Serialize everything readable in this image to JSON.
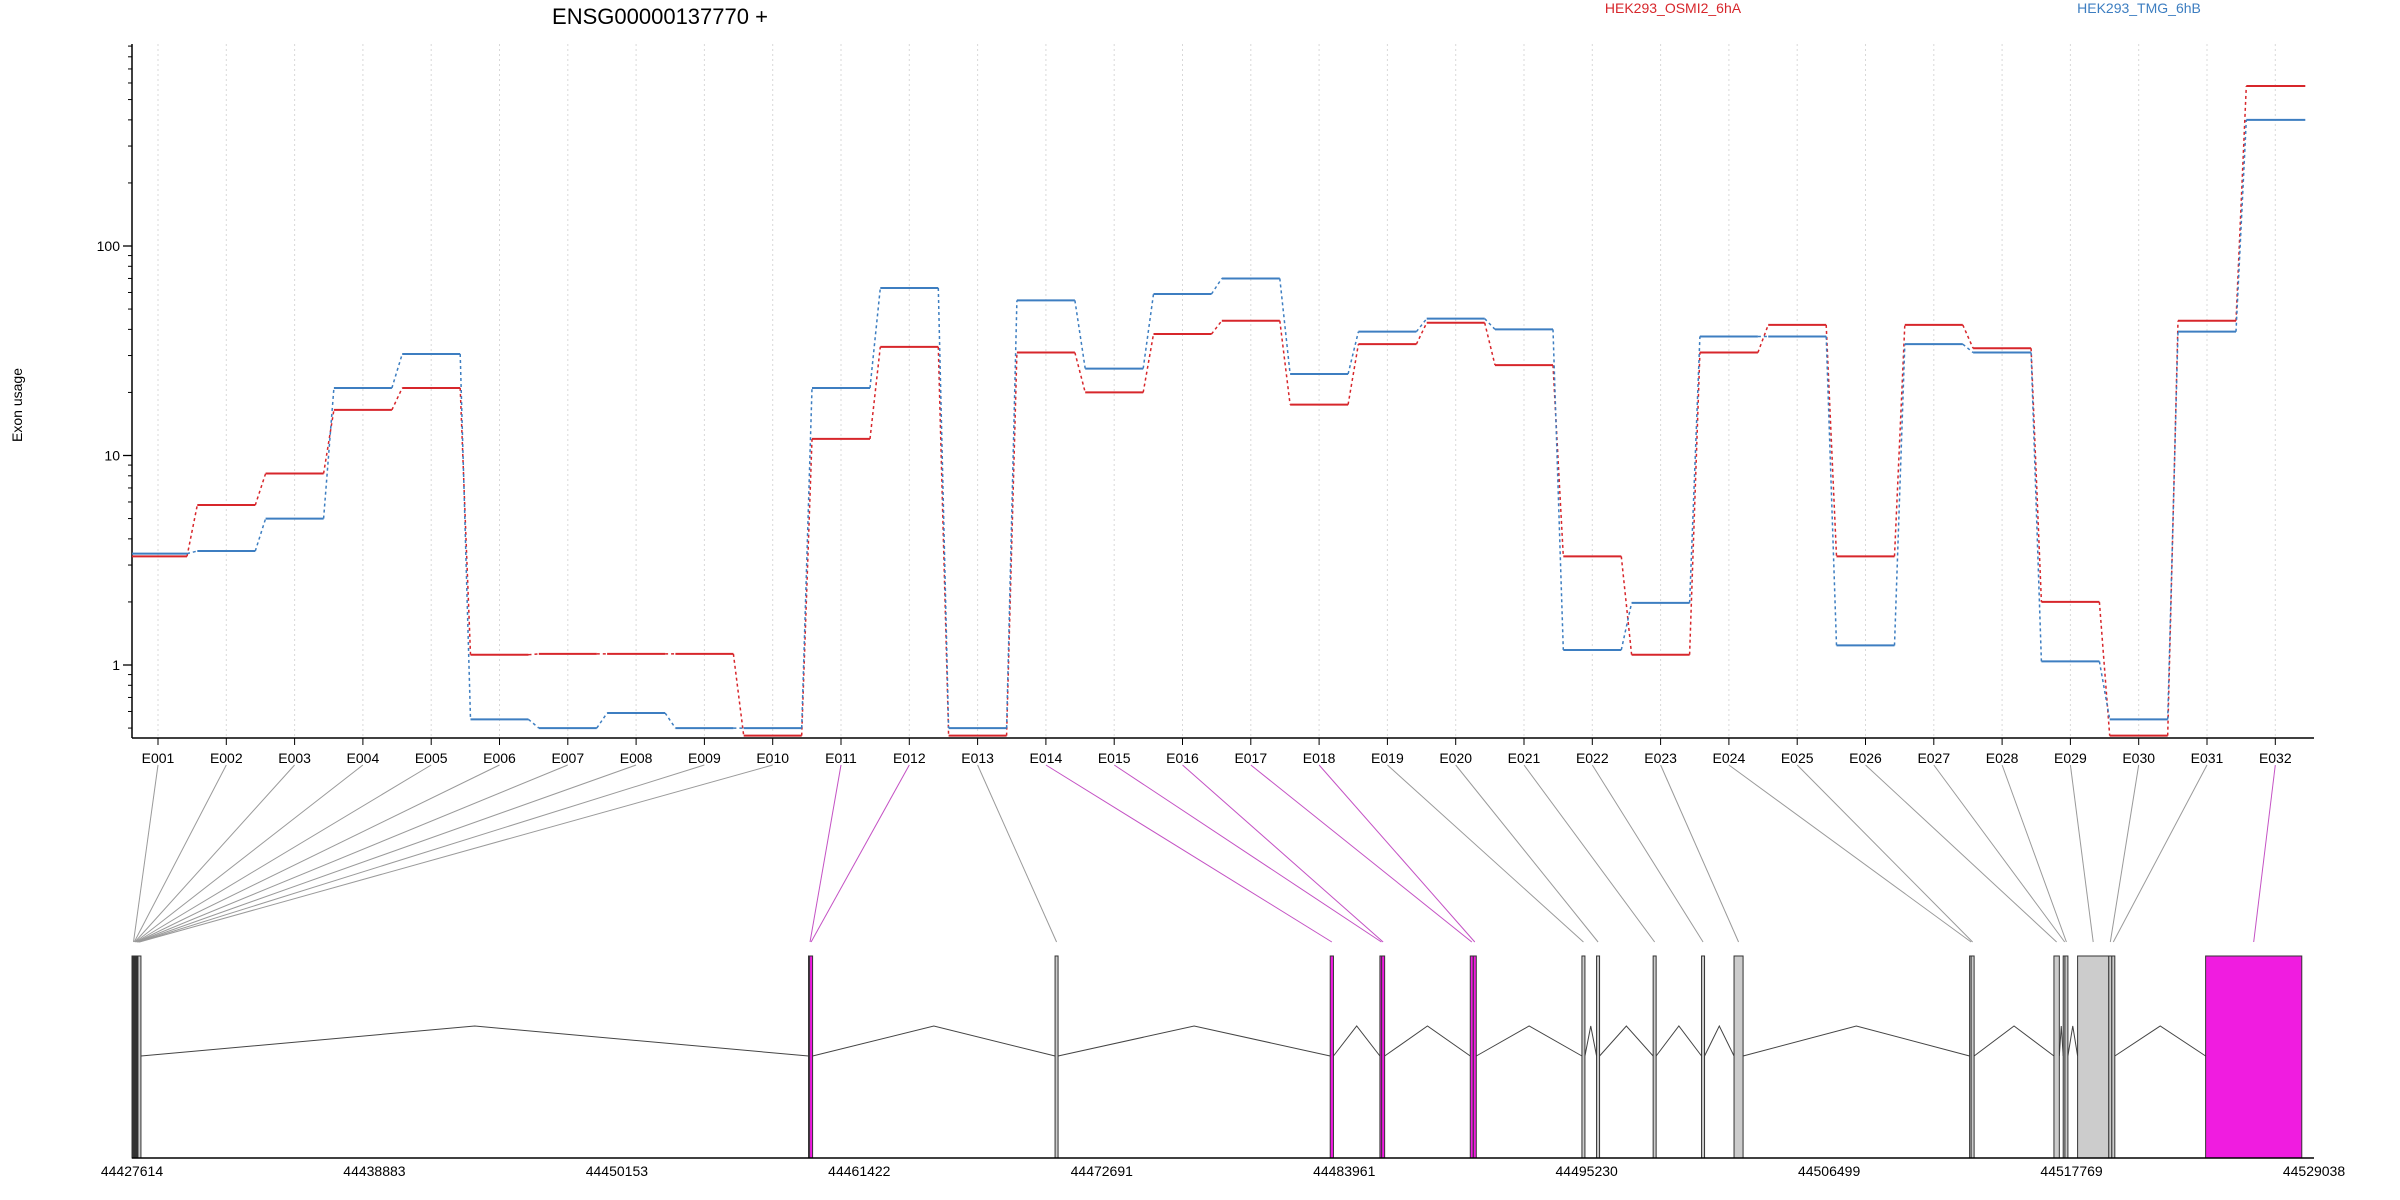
{
  "chart_data": {
    "type": "line",
    "title": "ENSG00000137770 +",
    "xlabel": "",
    "ylabel": "Exon usage",
    "y_scale": "log",
    "ylim": [
      0.4,
      850
    ],
    "y_ticks": [
      1,
      10,
      100
    ],
    "y_tick_labels": [
      "1",
      "10",
      "100"
    ],
    "grid": "vertical dotted lines at each exon",
    "legend_position": "top",
    "categories": [
      "E001",
      "E002",
      "E003",
      "E004",
      "E005",
      "E006",
      "E007",
      "E008",
      "E009",
      "E010",
      "E011",
      "E012",
      "E013",
      "E014",
      "E015",
      "E016",
      "E017",
      "E018",
      "E019",
      "E020",
      "E021",
      "E022",
      "E023",
      "E024",
      "E025",
      "E026",
      "E027",
      "E028",
      "E029",
      "E030",
      "E031",
      "E032"
    ],
    "series": [
      {
        "name": "HEK293_OSMI2_6hA",
        "color": "#d7262b",
        "values": [
          3.3,
          5.8,
          8.2,
          16.5,
          21,
          1.12,
          1.13,
          1.13,
          1.13,
          0.46,
          12,
          33,
          0.46,
          31,
          20,
          38,
          44,
          17.5,
          34,
          43,
          27,
          3.3,
          1.12,
          31,
          42,
          3.3,
          42,
          32.5,
          2,
          0.46,
          44,
          580
        ]
      },
      {
        "name": "HEK293_TMG_6hB",
        "color": "#3d7ec1",
        "values": [
          3.4,
          3.5,
          5,
          21,
          30.5,
          0.55,
          0.5,
          0.59,
          0.5,
          0.5,
          21,
          63,
          0.5,
          55,
          26,
          59,
          70,
          24.5,
          39,
          45,
          40,
          1.18,
          1.98,
          37,
          37,
          1.24,
          34,
          31,
          1.04,
          0.55,
          39,
          400
        ]
      }
    ],
    "gene_model": {
      "genomic_ticks": [
        "44427614",
        "44438883",
        "44450153",
        "44461422",
        "44472691",
        "44483961",
        "44495230",
        "44506499",
        "44517769",
        "44529038"
      ],
      "range": [
        44427614,
        44529038
      ],
      "highlight_color": "#f01ce0",
      "exon_fill_color": "#cccccc",
      "exons": [
        {
          "id": "E001",
          "start": 44427614,
          "end": 44427650,
          "highlight": false
        },
        {
          "id": "E002",
          "start": 44427650,
          "end": 44427680,
          "highlight": false
        },
        {
          "id": "E003",
          "start": 44427680,
          "end": 44427710,
          "highlight": false
        },
        {
          "id": "E004",
          "start": 44427710,
          "end": 44427740,
          "highlight": false
        },
        {
          "id": "E005",
          "start": 44427740,
          "end": 44427770,
          "highlight": false
        },
        {
          "id": "E006",
          "start": 44427770,
          "end": 44427800,
          "highlight": false
        },
        {
          "id": "E007",
          "start": 44427800,
          "end": 44427830,
          "highlight": false
        },
        {
          "id": "E008",
          "start": 44427830,
          "end": 44427860,
          "highlight": false
        },
        {
          "id": "E009",
          "start": 44427860,
          "end": 44427890,
          "highlight": false
        },
        {
          "id": "E010",
          "start": 44427890,
          "end": 44427950,
          "highlight": false
        },
        {
          "id": "E011",
          "start": 44459060,
          "end": 44459110,
          "highlight": true
        },
        {
          "id": "E012",
          "start": 44459110,
          "end": 44459200,
          "highlight": true
        },
        {
          "id": "E013",
          "start": 44470520,
          "end": 44470600,
          "highlight": false
        },
        {
          "id": "E014",
          "start": 44483310,
          "end": 44483460,
          "highlight": true
        },
        {
          "id": "E015",
          "start": 44485620,
          "end": 44485700,
          "highlight": true
        },
        {
          "id": "E016",
          "start": 44485700,
          "end": 44485780,
          "highlight": true
        },
        {
          "id": "E017",
          "start": 44489820,
          "end": 44489960,
          "highlight": true
        },
        {
          "id": "E018",
          "start": 44489960,
          "end": 44490040,
          "highlight": true
        },
        {
          "id": "E019",
          "start": 44495010,
          "end": 44495110,
          "highlight": false
        },
        {
          "id": "E020",
          "start": 44495690,
          "end": 44495800,
          "highlight": false
        },
        {
          "id": "E021",
          "start": 44498320,
          "end": 44498430,
          "highlight": false
        },
        {
          "id": "E022",
          "start": 44500570,
          "end": 44500680,
          "highlight": false
        },
        {
          "id": "E023",
          "start": 44502080,
          "end": 44502500,
          "highlight": false
        },
        {
          "id": "E024",
          "start": 44513030,
          "end": 44513100,
          "highlight": false
        },
        {
          "id": "E025",
          "start": 44513100,
          "end": 44513180,
          "highlight": false
        },
        {
          "id": "E026",
          "start": 44516950,
          "end": 44517200,
          "highlight": false
        },
        {
          "id": "E027",
          "start": 44517380,
          "end": 44517460,
          "highlight": false
        },
        {
          "id": "E028",
          "start": 44517460,
          "end": 44517540,
          "highlight": false
        },
        {
          "id": "E029",
          "start": 44518050,
          "end": 44519500,
          "highlight": false
        },
        {
          "id": "E030",
          "start": 44519500,
          "end": 44519640,
          "highlight": false
        },
        {
          "id": "E031",
          "start": 44519640,
          "end": 44519760,
          "highlight": false
        },
        {
          "id": "E032",
          "start": 44524000,
          "end": 44528470,
          "highlight": true
        }
      ]
    }
  }
}
